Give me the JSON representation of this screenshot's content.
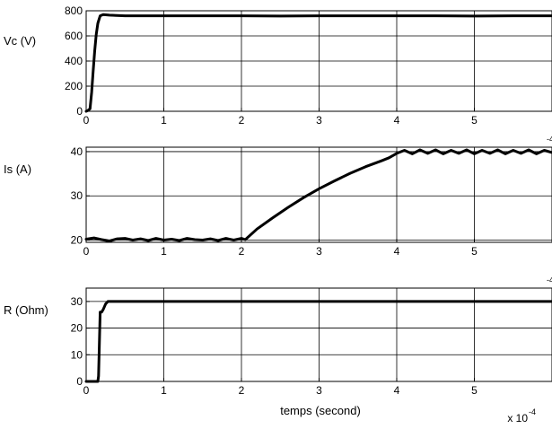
{
  "figure": {
    "xlabel": "temps (second)",
    "x_multiplier": "x 10",
    "x_exponent": "-4",
    "colors": {
      "line": "#000000",
      "grid": "#000000",
      "background": "#ffffff"
    }
  },
  "chart_data": [
    {
      "type": "line",
      "ylabel": "Vc (V)",
      "xlim": [
        0,
        6
      ],
      "ylim": [
        0,
        800
      ],
      "xticks": [
        "0",
        "1",
        "2",
        "3",
        "4",
        "5"
      ],
      "yticks": [
        "0",
        "200",
        "400",
        "600",
        "800"
      ],
      "grid": true,
      "series": [
        {
          "x": [
            0.0,
            0.02,
            0.05,
            0.07,
            0.09,
            0.11,
            0.13,
            0.15,
            0.18,
            0.22,
            0.3,
            0.5,
            1.0,
            1.5,
            2.0,
            2.5,
            3.0,
            3.5,
            4.0,
            4.5,
            5.0,
            5.5,
            6.0
          ],
          "y": [
            0,
            5,
            20,
            150,
            320,
            480,
            610,
            700,
            760,
            770,
            765,
            760,
            760,
            760,
            760,
            758,
            760,
            760,
            760,
            760,
            758,
            760,
            760
          ]
        }
      ]
    },
    {
      "type": "line",
      "ylabel": "Is (A)",
      "xlim": [
        0,
        6
      ],
      "ylim": [
        19.5,
        41
      ],
      "xticks": [
        "0",
        "1",
        "2",
        "3",
        "4",
        "5"
      ],
      "yticks": [
        "20",
        "30",
        "40"
      ],
      "grid": true,
      "x_exponent": "-4",
      "series": [
        {
          "x": [
            0.0,
            0.1,
            0.2,
            0.3,
            0.4,
            0.5,
            0.6,
            0.7,
            0.8,
            0.9,
            1.0,
            1.1,
            1.2,
            1.3,
            1.4,
            1.5,
            1.6,
            1.7,
            1.8,
            1.9,
            2.0,
            2.05,
            2.2,
            2.4,
            2.6,
            2.8,
            3.0,
            3.2,
            3.4,
            3.6,
            3.8,
            3.9,
            4.0,
            4.1,
            4.2,
            4.3,
            4.4,
            4.5,
            4.6,
            4.7,
            4.8,
            4.9,
            5.0,
            5.1,
            5.2,
            5.3,
            5.4,
            5.5,
            5.6,
            5.7,
            5.8,
            5.9,
            6.0
          ],
          "y": [
            20.2,
            20.5,
            20.1,
            19.8,
            20.3,
            20.4,
            20.0,
            20.3,
            19.9,
            20.4,
            20.0,
            20.2,
            19.9,
            20.4,
            20.1,
            20.0,
            20.3,
            19.9,
            20.4,
            20.0,
            20.4,
            20.1,
            22.5,
            25.0,
            27.4,
            29.6,
            31.6,
            33.4,
            35.1,
            36.6,
            37.9,
            38.6,
            39.6,
            40.3,
            39.5,
            40.4,
            39.6,
            40.4,
            39.5,
            40.3,
            39.6,
            40.4,
            39.5,
            40.3,
            39.6,
            40.4,
            39.5,
            40.3,
            39.6,
            40.4,
            39.5,
            40.3,
            39.8
          ]
        }
      ]
    },
    {
      "type": "line",
      "ylabel": "R (Ohm)",
      "xlim": [
        0,
        6
      ],
      "ylim": [
        0,
        35
      ],
      "xticks": [
        "0",
        "1",
        "2",
        "3",
        "4",
        "5"
      ],
      "yticks": [
        "0",
        "10",
        "20",
        "30"
      ],
      "grid": true,
      "x_exponent": "-4",
      "series": [
        {
          "x": [
            0.0,
            0.15,
            0.16,
            0.18,
            0.2,
            0.22,
            0.25,
            0.28,
            0.3,
            0.5,
            1.0,
            2.0,
            3.0,
            4.0,
            5.0,
            6.0
          ],
          "y": [
            0,
            0,
            2,
            26,
            26,
            27,
            29,
            30,
            30,
            30,
            30,
            30,
            30,
            30,
            30,
            30
          ]
        }
      ]
    }
  ]
}
